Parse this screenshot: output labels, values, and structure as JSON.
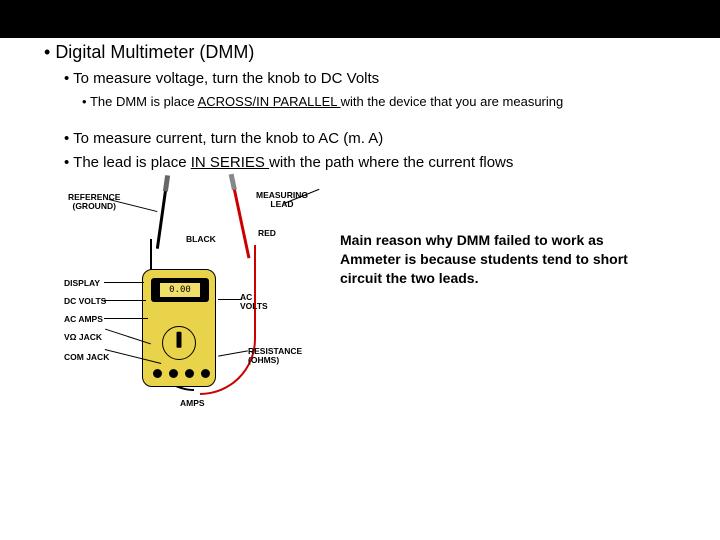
{
  "heading": "Digital Multimeter (DMM)",
  "voltage": {
    "text": "To measure voltage, turn the knob to DC Volts",
    "sub_pre": "The DMM is place ",
    "sub_u": "ACROSS/IN PARALLEL ",
    "sub_post": "with the device that you are measuring"
  },
  "current": {
    "text": "To measure current, turn the knob to AC (m. A)",
    "sub_pre": "The lead is place ",
    "sub_u": "IN SERIES ",
    "sub_post": "with the path where the current flows"
  },
  "callout": "Main reason why DMM failed to work as Ammeter is because students tend to short circuit the two leads.",
  "diagram": {
    "reference": "REFERENCE",
    "ground": "(GROUND)",
    "black": "BLACK",
    "measuring": "MEASURING",
    "lead": "LEAD",
    "red": "RED",
    "display": "DISPLAY",
    "dcvolts": "DC VOLTS",
    "acamps": "AC AMPS",
    "vohmjack": "VΩ JACK",
    "comjack": "COM JACK",
    "acvolts_l1": "AC",
    "acvolts_l2": "VOLTS",
    "resistance": "RESISTANCE",
    "ohms": "(OHMS)",
    "amps": "AMPS",
    "screen": "0.00"
  }
}
